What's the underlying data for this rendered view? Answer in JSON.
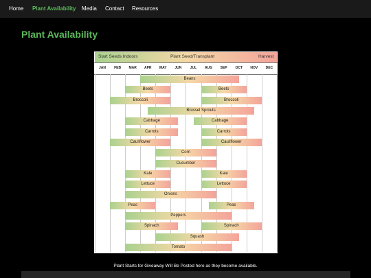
{
  "nav": {
    "items": [
      {
        "label": "Home",
        "active": false
      },
      {
        "label": "Plant Availability",
        "active": true
      },
      {
        "label": "Media",
        "active": false
      },
      {
        "label": "Contact",
        "active": false
      },
      {
        "label": "Resources",
        "active": false
      }
    ]
  },
  "page": {
    "title": "Plant Availability",
    "note": "Plant Starts for Giveaway Will Be Posted here as they become available."
  },
  "legend": {
    "start": "Start Seeds Indoors",
    "plant": "Plant Seed/Transplant",
    "harvest": "Harvest"
  },
  "colors": {
    "accent": "#5cb85c",
    "start": "#a9d18e",
    "plant": "#f5d8a6",
    "harvest": "#f4a39a"
  },
  "months": [
    "JAN",
    "FEB",
    "MAR",
    "APR",
    "MAY",
    "JUN",
    "JUL",
    "AUG",
    "SEP",
    "OCT",
    "NOV",
    "DEC"
  ],
  "crops": [
    {
      "name": "Beans",
      "bars": [
        [
          3.0,
          9.5
        ]
      ]
    },
    {
      "name": "Beets",
      "bars": [
        [
          2.0,
          5.0
        ],
        [
          7.0,
          10.0
        ]
      ]
    },
    {
      "name": "Broccoli",
      "bars": [
        [
          1.0,
          5.0
        ],
        [
          7.0,
          11.0
        ]
      ]
    },
    {
      "name": "Brussel Sprouts",
      "bars": [
        [
          3.5,
          10.5
        ]
      ]
    },
    {
      "name": "Cabbage",
      "bars": [
        [
          2.0,
          5.5
        ],
        [
          6.5,
          10.0
        ]
      ]
    },
    {
      "name": "Carrots",
      "bars": [
        [
          2.0,
          5.5
        ],
        [
          7.0,
          10.0
        ]
      ]
    },
    {
      "name": "Cauliflower",
      "bars": [
        [
          1.0,
          5.0
        ],
        [
          7.0,
          11.0
        ]
      ]
    },
    {
      "name": "Corn",
      "bars": [
        [
          4.0,
          8.0
        ]
      ]
    },
    {
      "name": "Cucumber",
      "bars": [
        [
          4.0,
          8.0
        ]
      ]
    },
    {
      "name": "Kale",
      "bars": [
        [
          2.0,
          5.0
        ],
        [
          7.0,
          10.0
        ]
      ]
    },
    {
      "name": "Lettuce",
      "bars": [
        [
          2.0,
          5.0
        ],
        [
          7.0,
          10.0
        ]
      ]
    },
    {
      "name": "Onions",
      "bars": [
        [
          2.0,
          8.0
        ]
      ]
    },
    {
      "name": "Peas",
      "bars": [
        [
          1.0,
          4.0
        ],
        [
          7.5,
          10.5
        ]
      ]
    },
    {
      "name": "Peppers",
      "bars": [
        [
          2.0,
          9.0
        ]
      ]
    },
    {
      "name": "Spinach",
      "bars": [
        [
          2.0,
          5.5
        ],
        [
          7.0,
          11.0
        ]
      ]
    },
    {
      "name": "Squash",
      "bars": [
        [
          4.0,
          9.5
        ]
      ]
    },
    {
      "name": "Tomato",
      "bars": [
        [
          2.0,
          9.0
        ]
      ]
    }
  ]
}
